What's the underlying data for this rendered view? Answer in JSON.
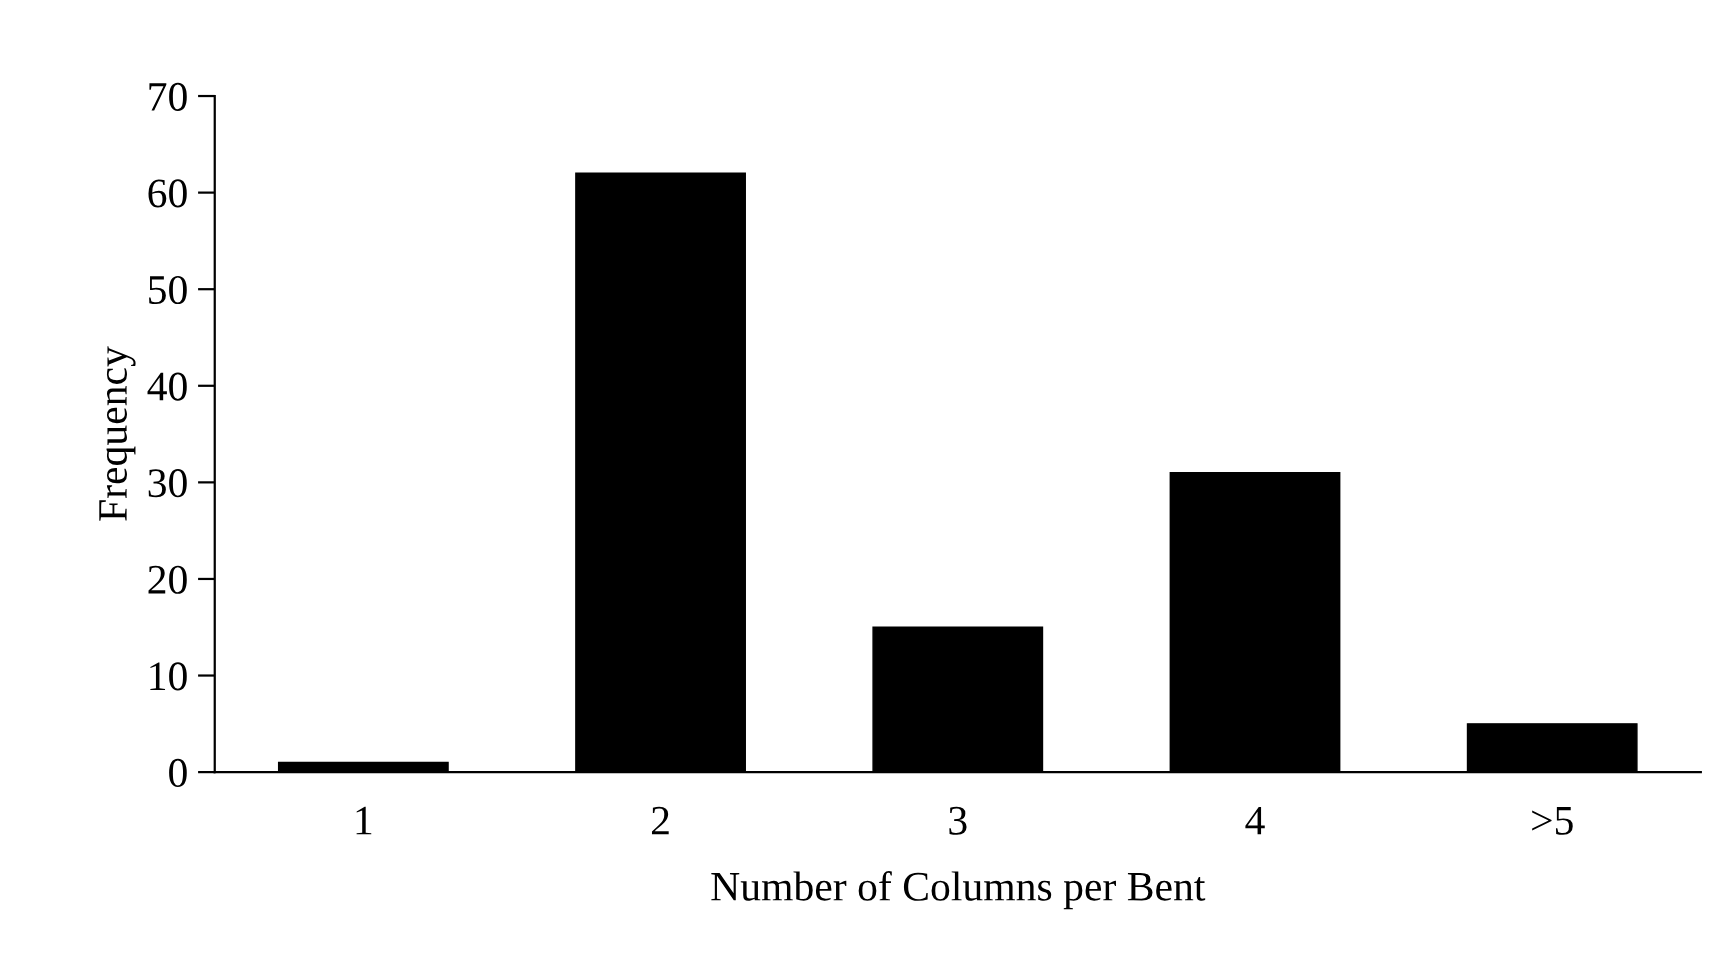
{
  "chart_data": {
    "type": "bar",
    "xlabel": "Number of Columns per Bent",
    "ylabel": "Frequency",
    "categories": [
      "1",
      "2",
      "3",
      "4",
      ">5"
    ],
    "values": [
      1,
      62,
      15,
      31,
      5
    ],
    "color": "#000000",
    "ylim": [
      0,
      70
    ],
    "yticks": [
      0,
      10,
      20,
      30,
      40,
      50,
      60,
      70
    ],
    "grid": false,
    "legend": false
  }
}
